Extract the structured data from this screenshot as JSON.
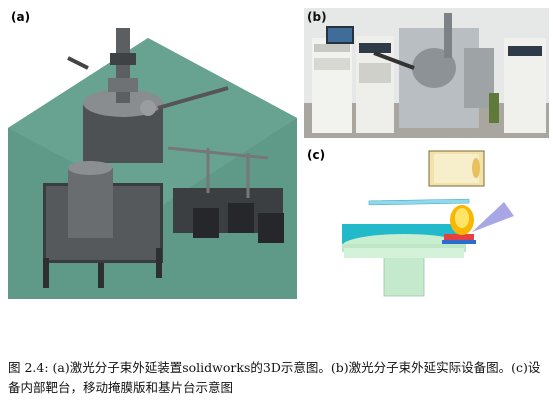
{
  "figure": {
    "panels": [
      {
        "label": "(a)"
      },
      {
        "label": "(b)"
      },
      {
        "label": "(c)"
      }
    ],
    "caption": "图 2.4: (a)激光分子束外延装置solidworks的3D示意图。(b)激光分子束外延实际设备图。(c)设备内部靶台，移动掩膜版和基片台示意图"
  }
}
